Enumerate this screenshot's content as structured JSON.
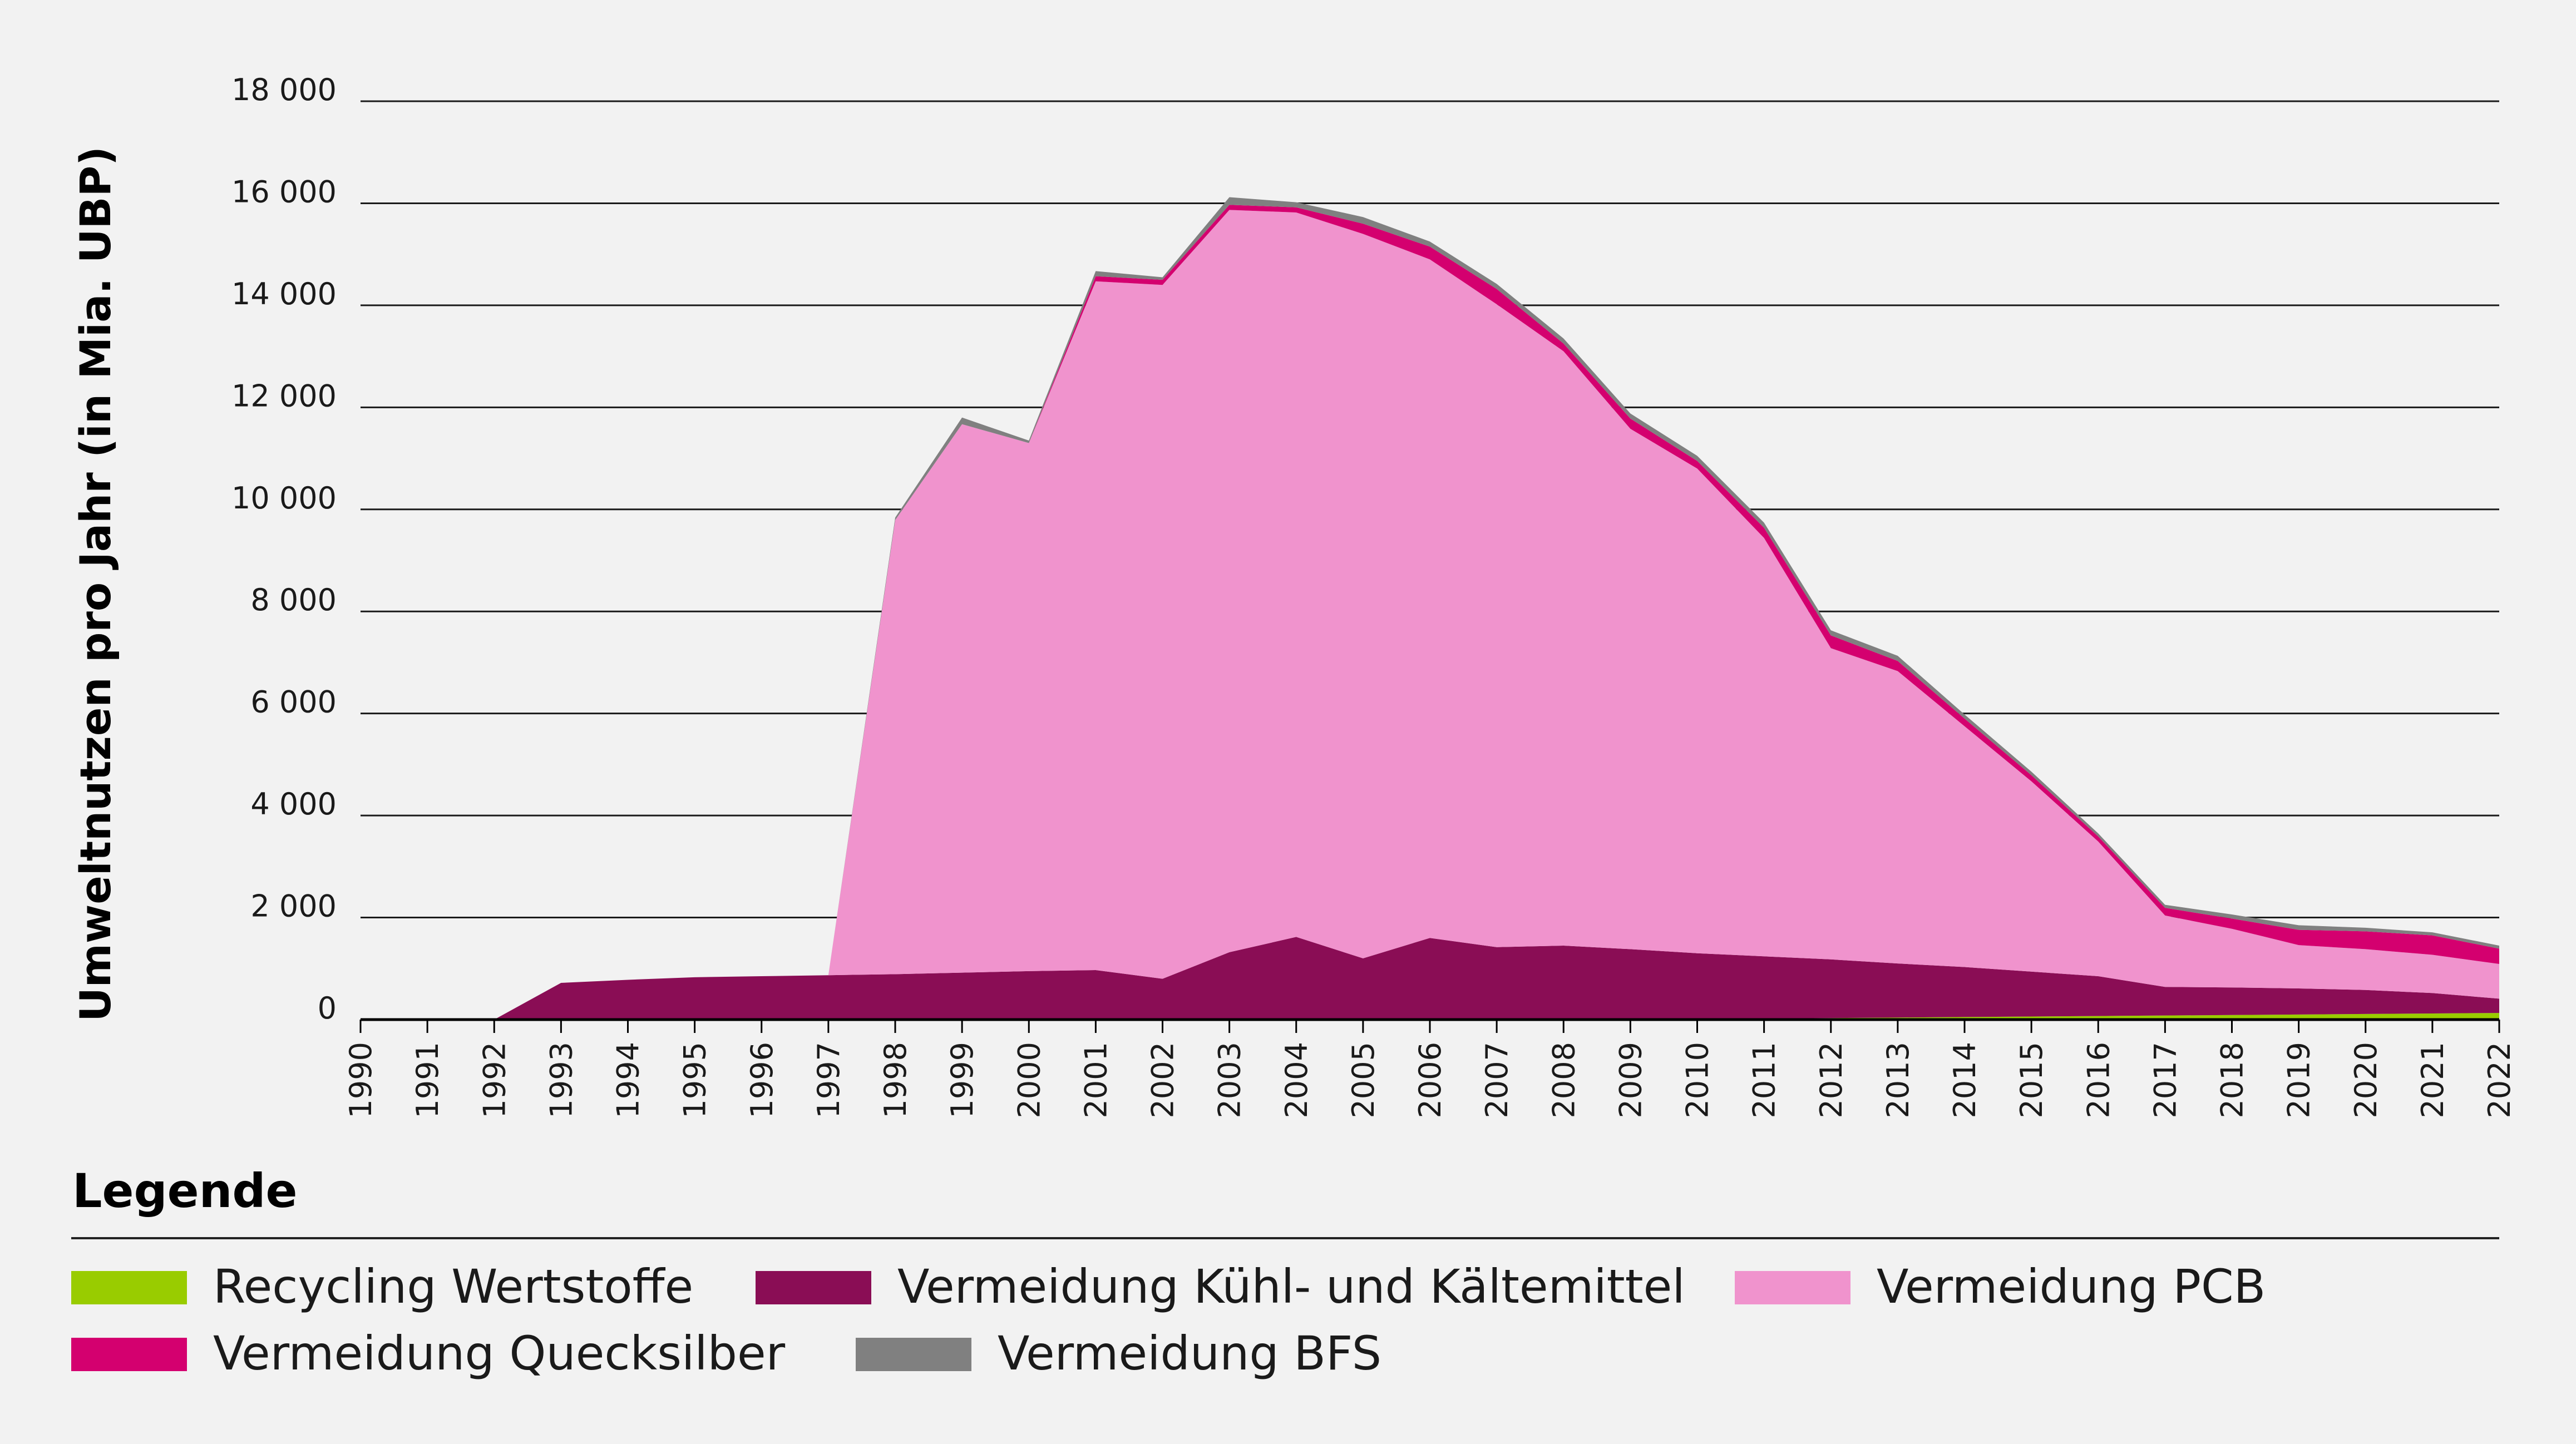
{
  "chart_data": {
    "type": "area",
    "stacked": true,
    "title": "",
    "xlabel": "",
    "ylabel": "Umweltnutzen pro Jahr (in Mia. UBP)",
    "ylim": [
      0,
      18000
    ],
    "yticks": [
      0,
      2000,
      4000,
      6000,
      8000,
      10000,
      12000,
      14000,
      16000,
      18000
    ],
    "ytick_labels": [
      "0",
      "2 000",
      "4 000",
      "6 000",
      "8 000",
      "10 000",
      "12 000",
      "14 000",
      "16 000",
      "18 000"
    ],
    "grid": true,
    "legend_title": "Legende",
    "legend_position": "bottom",
    "x": [
      "1990",
      "1991",
      "1992",
      "1993",
      "1994",
      "1995",
      "1996",
      "1997",
      "1998",
      "1999",
      "2000",
      "2001",
      "2002",
      "2003",
      "2004",
      "2005",
      "2006",
      "2007",
      "2008",
      "2009",
      "2010",
      "2011",
      "2012",
      "2013",
      "2014",
      "2015",
      "2016",
      "2017",
      "2018",
      "2019",
      "2020",
      "2021",
      "2022"
    ],
    "series": [
      {
        "name": "Recycling Wertstoffe",
        "color": "#99cc00",
        "values": [
          0,
          0,
          0,
          0,
          0,
          0,
          0,
          0,
          0,
          0,
          0,
          0,
          0,
          0,
          0,
          0,
          0,
          0,
          0,
          0,
          0,
          20,
          30,
          40,
          50,
          60,
          70,
          80,
          90,
          100,
          110,
          120,
          130
        ]
      },
      {
        "name": "Vermeidung Kühl- und Kältemittel",
        "color": "#8a0d55",
        "values": [
          0,
          0,
          0,
          720,
          780,
          830,
          850,
          870,
          890,
          920,
          950,
          970,
          800,
          1320,
          1620,
          1200,
          1600,
          1420,
          1450,
          1380,
          1300,
          1220,
          1150,
          1060,
          980,
          880,
          780,
          560,
          540,
          510,
          470,
          400,
          280
        ]
      },
      {
        "name": "Vermeidung PCB",
        "color": "#f093cd",
        "values": [
          0,
          0,
          0,
          0,
          0,
          0,
          0,
          0,
          8900,
          10750,
          10350,
          13500,
          13600,
          14550,
          14200,
          14200,
          13300,
          12600,
          11650,
          10200,
          9500,
          8200,
          6100,
          5730,
          4720,
          3730,
          2640,
          1400,
          1150,
          850,
          800,
          750,
          680
        ]
      },
      {
        "name": "Vermeidung Quecksilber",
        "color": "#d4006f",
        "values": [
          0,
          0,
          0,
          0,
          0,
          0,
          0,
          0,
          0,
          0,
          0,
          100,
          100,
          100,
          100,
          200,
          250,
          300,
          150,
          200,
          150,
          200,
          250,
          200,
          150,
          120,
          100,
          150,
          200,
          300,
          350,
          380,
          300
        ]
      },
      {
        "name": "Vermeidung BFS",
        "color": "#808080",
        "values": [
          0,
          0,
          0,
          0,
          0,
          0,
          0,
          0,
          50,
          130,
          50,
          100,
          50,
          150,
          100,
          130,
          100,
          100,
          100,
          100,
          100,
          100,
          100,
          100,
          80,
          70,
          60,
          60,
          80,
          90,
          70,
          60,
          60
        ]
      }
    ]
  }
}
